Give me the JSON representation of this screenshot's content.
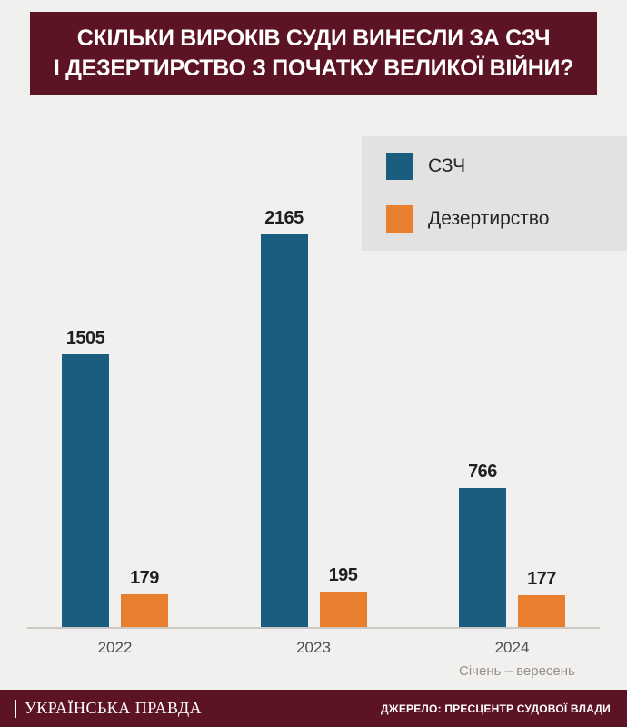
{
  "title": {
    "line1": "СКІЛЬКИ ВИРОКІВ СУДИ ВИНЕСЛИ ЗА СЗЧ",
    "line2": "І ДЕЗЕРТИРСТВО З ПОЧАТКУ ВЕЛИКОЇ ВІЙНИ?"
  },
  "legend": {
    "items": [
      {
        "label": "СЗЧ",
        "color": "#1b5d7e"
      },
      {
        "label": "Дезертирство",
        "color": "#e87f2f"
      }
    ]
  },
  "chart_data": {
    "type": "bar",
    "categories": [
      "2022",
      "2023",
      "2024"
    ],
    "series": [
      {
        "name": "СЗЧ",
        "color": "#1b5d7e",
        "values": [
          1505,
          2165,
          766
        ]
      },
      {
        "name": "Дезертирство",
        "color": "#e87f2f",
        "values": [
          179,
          195,
          177
        ]
      }
    ],
    "value_labels": true,
    "category_note": {
      "category": "2024",
      "text": "Січень – вересень"
    },
    "ylim": [
      0,
      2165
    ],
    "grid": false,
    "legend_position": "top-right"
  },
  "footer": {
    "brand": "УКРАЇНСЬКА ПРАВДА",
    "source": "ДЖЕРЕЛО: ПРЕСЦЕНТР СУДОВОЇ ВЛАДИ"
  },
  "colors": {
    "background": "#f1f0ee",
    "title_bg": "#5c1323",
    "footer_bg": "#5c1323",
    "legend_bg": "#e3e2e0",
    "szch_bar": "#1b5d7e",
    "desertion_bar": "#e87f2f",
    "axis_line": "#cac8c5",
    "value_label_text": "#1f1f1f",
    "tick_text": "#4f4f4f",
    "note_text": "#93908d"
  }
}
